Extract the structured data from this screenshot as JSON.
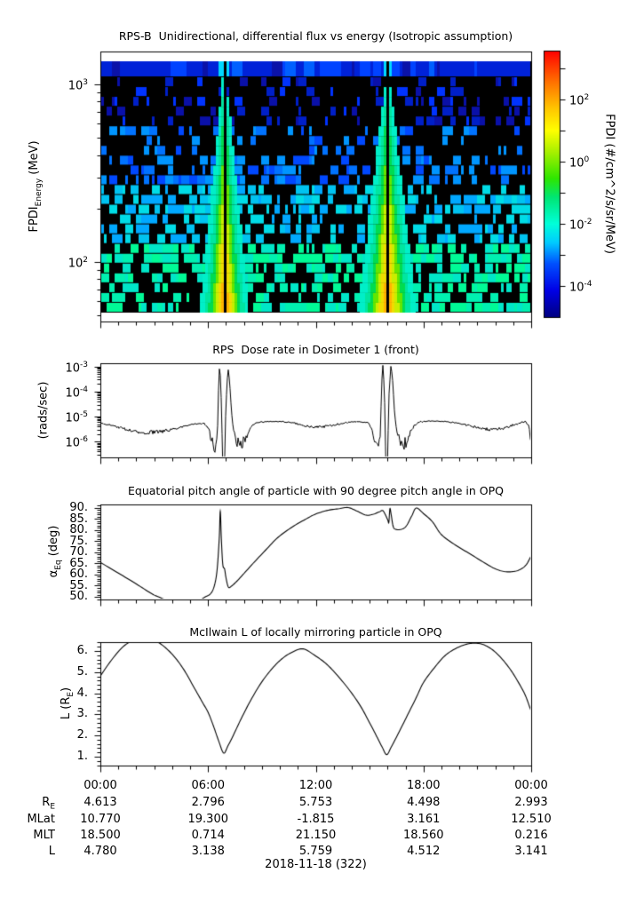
{
  "page": {
    "background": "#ffffff",
    "text_color": "#000000",
    "date_label": "2018-11-18 (322)"
  },
  "chart_data": [
    {
      "type": "heatmap",
      "title": "RPS-B  Unidirectional, differential flux vs energy (Isotropic assumption)",
      "ylabel": {
        "main": "FPDI",
        "sub": "Energy",
        "rest": " (MeV)"
      },
      "x_range_hours": [
        0,
        24
      ],
      "y_scale": "log",
      "y_log_range_mev": [
        1.665,
        3.185
      ],
      "y_ticks": [
        {
          "base": "10",
          "exp": "3",
          "log": 3
        },
        {
          "base": "10",
          "exp": "2",
          "log": 2
        }
      ],
      "energy_bins": 25,
      "background_style": "sparse blue-cyan noise cells on black, denser and greener toward low energy, solid blue band at highest-energy bin",
      "perigee_funnels": [
        {
          "hour": 6.87,
          "width_scale": 1.0,
          "note": "V-shaped high-flux funnel, green-yellow-orange, black center line"
        },
        {
          "hour": 15.95,
          "width_scale": 1.18,
          "note": "V-shaped high-flux funnel, green-yellow-orange, black center line"
        }
      ],
      "colorbar": {
        "label": "FPDI (#/cm^2/s/sr/MeV)",
        "scale": "log",
        "log_range": [
          -5,
          3.571
        ],
        "tick_logs": [
          3,
          2,
          1,
          0,
          -1,
          -2,
          -3,
          -4
        ],
        "ticks_labeled": [
          {
            "base": "10",
            "exp": "2",
            "log": 2
          },
          {
            "base": "10",
            "exp": "0",
            "log": 0
          },
          {
            "base": "10",
            "exp": "-2",
            "log": -2
          },
          {
            "base": "10",
            "exp": "-4",
            "log": -4
          }
        ],
        "colormap": "rainbow"
      }
    },
    {
      "type": "line",
      "y_scale": "log",
      "title": "RPS  Dose rate in Dosimeter 1 (front)",
      "ylabel": {
        "main": "(rads/sec)",
        "sub": "",
        "rest": ""
      },
      "ylim_log": [
        -6.63,
        -2.87
      ],
      "y_ticks": [
        {
          "base": "10",
          "exp": "-3",
          "log": -3
        },
        {
          "base": "10",
          "exp": "-4",
          "log": -4
        },
        {
          "base": "10",
          "exp": "-5",
          "log": -5
        },
        {
          "base": "10",
          "exp": "-6",
          "log": -6
        }
      ],
      "line_color": "#000000",
      "points_h_v_noise": [
        [
          0,
          5.6e-06,
          0.03
        ],
        [
          0.5,
          4.6e-06,
          0.04
        ],
        [
          1,
          3.8e-06,
          0.05
        ],
        [
          1.5,
          3e-06,
          0.07
        ],
        [
          2,
          2.6e-06,
          0.08
        ],
        [
          2.6,
          2.3e-06,
          0.09
        ],
        [
          3.2,
          2.4e-06,
          0.09
        ],
        [
          3.8,
          2.9e-06,
          0.06
        ],
        [
          4.4,
          3.6e-06,
          0.04
        ],
        [
          5,
          4.8e-06,
          0.03
        ],
        [
          5.5,
          5.4e-06,
          0.025
        ],
        [
          5.8,
          5.2e-06,
          0.03
        ],
        [
          6.0,
          3.8e-06,
          0.06
        ],
        [
          6.15,
          1.4e-06,
          0.18
        ],
        [
          6.3,
          8e-07,
          0.26
        ],
        [
          6.45,
          6.5e-07,
          0.3
        ],
        [
          6.52,
          1.8e-06,
          0.12
        ],
        [
          6.58,
          0.00011,
          0.02
        ],
        [
          6.64,
          0.00115,
          0.005
        ],
        [
          6.71,
          0.00022,
          0.01
        ],
        [
          6.78,
          2e-06,
          0.02
        ],
        [
          6.87,
          3e-09,
          0
        ],
        [
          6.97,
          8e-06,
          0.01
        ],
        [
          7.06,
          0.00028,
          0.008
        ],
        [
          7.13,
          0.00078,
          0.005
        ],
        [
          7.2,
          0.00024,
          0.01
        ],
        [
          7.3,
          1.8e-05,
          0.02
        ],
        [
          7.42,
          2.4e-06,
          0.08
        ],
        [
          7.55,
          1.3e-06,
          0.2
        ],
        [
          7.72,
          8e-07,
          0.3
        ],
        [
          7.9,
          7.5e-07,
          0.3
        ],
        [
          8.05,
          1.1e-06,
          0.2
        ],
        [
          8.2,
          2e-06,
          0.1
        ],
        [
          8.4,
          3.8e-06,
          0.05
        ],
        [
          8.7,
          5.6e-06,
          0.03
        ],
        [
          9.3,
          6.4e-06,
          0.022
        ],
        [
          10,
          6.4e-06,
          0.022
        ],
        [
          10.7,
          5.7e-06,
          0.03
        ],
        [
          11.3,
          4.5e-06,
          0.04
        ],
        [
          11.9,
          3.7e-06,
          0.05
        ],
        [
          12.5,
          4e-06,
          0.05
        ],
        [
          13.1,
          4.8e-06,
          0.04
        ],
        [
          13.7,
          5.7e-06,
          0.03
        ],
        [
          14.4,
          6.4e-06,
          0.022
        ],
        [
          14.9,
          5.6e-06,
          0.03
        ],
        [
          15.1,
          3.8e-06,
          0.05
        ],
        [
          15.25,
          1.5e-06,
          0.15
        ],
        [
          15.4,
          9e-07,
          0.26
        ],
        [
          15.52,
          7e-07,
          0.3
        ],
        [
          15.6,
          1.6e-06,
          0.12
        ],
        [
          15.66,
          0.00015,
          0.02
        ],
        [
          15.73,
          0.0013,
          0.004
        ],
        [
          15.82,
          0.00012,
          0.01
        ],
        [
          15.95,
          3e-09,
          0
        ],
        [
          16.07,
          6e-05,
          0.01
        ],
        [
          16.19,
          0.00125,
          0.004
        ],
        [
          16.28,
          0.00028,
          0.01
        ],
        [
          16.38,
          1.8e-05,
          0.02
        ],
        [
          16.5,
          2.8e-06,
          0.08
        ],
        [
          16.65,
          1.4e-06,
          0.2
        ],
        [
          16.82,
          8.5e-07,
          0.3
        ],
        [
          17,
          9e-07,
          0.28
        ],
        [
          17.15,
          1.4e-06,
          0.18
        ],
        [
          17.3,
          2.6e-06,
          0.08
        ],
        [
          17.5,
          4.6e-06,
          0.04
        ],
        [
          17.8,
          6.2e-06,
          0.03
        ],
        [
          18.4,
          6.6e-06,
          0.022
        ],
        [
          19.1,
          6.4e-06,
          0.022
        ],
        [
          19.7,
          5.7e-06,
          0.03
        ],
        [
          20.3,
          4.7e-06,
          0.04
        ],
        [
          20.9,
          3.8e-06,
          0.05
        ],
        [
          21.4,
          3.2e-06,
          0.06
        ],
        [
          21.9,
          3e-06,
          0.07
        ],
        [
          22.4,
          3.4e-06,
          0.06
        ],
        [
          22.9,
          4.4e-06,
          0.05
        ],
        [
          23.4,
          5.7e-06,
          0.035
        ],
        [
          23.65,
          6.3e-06,
          0.03
        ],
        [
          23.85,
          4.5e-06,
          0.06
        ],
        [
          23.95,
          1.5e-06,
          0.15
        ],
        [
          24,
          9e-07,
          0.2
        ]
      ]
    },
    {
      "type": "line",
      "title": "Equatorial pitch angle of particle with 90 degree pitch angle in OPQ",
      "ylabel": {
        "main": "α",
        "sub": "Eq",
        "rest": " (deg)"
      },
      "ylim": [
        48.8,
        91.6
      ],
      "y_ticks": [
        50,
        55,
        60,
        65,
        70,
        75,
        80,
        85,
        90
      ],
      "y_tick_suffix": ".",
      "y_minor_step": 1,
      "line_color": "#000000",
      "points_h_deg": [
        [
          0,
          65.5
        ],
        [
          1,
          60.7
        ],
        [
          2,
          55.8
        ],
        [
          2.8,
          51.7
        ],
        [
          3.2,
          50.1
        ],
        [
          3.8,
          48.4
        ],
        [
          4.6,
          47.6
        ],
        [
          5.4,
          48.2
        ],
        [
          5.85,
          50.0
        ],
        [
          6.15,
          51.5
        ],
        [
          6.35,
          55
        ],
        [
          6.5,
          62
        ],
        [
          6.62,
          76
        ],
        [
          6.68,
          88.5
        ],
        [
          6.74,
          76
        ],
        [
          6.82,
          64.5
        ],
        [
          6.92,
          62.5
        ],
        [
          7.0,
          58.5
        ],
        [
          7.13,
          54.4
        ],
        [
          7.3,
          54.8
        ],
        [
          7.6,
          57
        ],
        [
          8,
          60.5
        ],
        [
          8.5,
          65
        ],
        [
          9.2,
          71
        ],
        [
          9.9,
          76.8
        ],
        [
          10.7,
          81.5
        ],
        [
          11.4,
          84.8
        ],
        [
          12,
          87.3
        ],
        [
          12.7,
          89
        ],
        [
          13.3,
          89.7
        ],
        [
          13.8,
          90.2
        ],
        [
          14.3,
          88.6
        ],
        [
          14.8,
          86.8
        ],
        [
          15.2,
          87.2
        ],
        [
          15.55,
          88.3
        ],
        [
          15.75,
          88.7
        ],
        [
          16.0,
          84.8
        ],
        [
          16.07,
          83.5
        ],
        [
          16.13,
          89.7
        ],
        [
          16.2,
          87
        ],
        [
          16.32,
          81.5
        ],
        [
          16.5,
          80.3
        ],
        [
          16.8,
          80.5
        ],
        [
          17.05,
          82
        ],
        [
          17.35,
          86.5
        ],
        [
          17.6,
          90
        ],
        [
          18.0,
          87.5
        ],
        [
          18.5,
          83.8
        ],
        [
          19,
          78
        ],
        [
          19.8,
          73.2
        ],
        [
          20.6,
          69.3
        ],
        [
          21.4,
          65.3
        ],
        [
          22,
          62.6
        ],
        [
          22.5,
          61.4
        ],
        [
          22.9,
          61.3
        ],
        [
          23.3,
          62
        ],
        [
          23.7,
          64.2
        ],
        [
          24,
          68.5
        ]
      ]
    },
    {
      "type": "line",
      "title": "McIlwain L of locally mirroring particle in OPQ",
      "ylabel": {
        "main": "L (R",
        "sub": "E",
        "rest": ")"
      },
      "ylim": [
        0.58,
        6.42
      ],
      "y_ticks": [
        1,
        2,
        3,
        4,
        5,
        6
      ],
      "y_tick_suffix": ".",
      "y_minor_step": 0.2,
      "line_color": "#000000",
      "points_h_l": [
        [
          0,
          4.82
        ],
        [
          0.6,
          5.55
        ],
        [
          1.2,
          6.15
        ],
        [
          1.7,
          6.45
        ],
        [
          2.2,
          6.58
        ],
        [
          2.7,
          6.58
        ],
        [
          3.2,
          6.42
        ],
        [
          3.7,
          6.1
        ],
        [
          4.2,
          5.65
        ],
        [
          4.7,
          5.05
        ],
        [
          5.2,
          4.3
        ],
        [
          5.7,
          3.55
        ],
        [
          6.0,
          3.1
        ],
        [
          6.3,
          2.45
        ],
        [
          6.6,
          1.72
        ],
        [
          6.87,
          1.17
        ],
        [
          7.1,
          1.5
        ],
        [
          7.4,
          2.0
        ],
        [
          7.8,
          2.72
        ],
        [
          8.3,
          3.55
        ],
        [
          8.9,
          4.42
        ],
        [
          9.5,
          5.1
        ],
        [
          10.1,
          5.62
        ],
        [
          10.7,
          5.95
        ],
        [
          11.3,
          6.1
        ],
        [
          12,
          5.76
        ],
        [
          12.6,
          5.38
        ],
        [
          13.2,
          4.85
        ],
        [
          13.9,
          4.12
        ],
        [
          14.5,
          3.38
        ],
        [
          15.0,
          2.6
        ],
        [
          15.4,
          1.95
        ],
        [
          15.7,
          1.45
        ],
        [
          15.95,
          1.1
        ],
        [
          16.2,
          1.45
        ],
        [
          16.6,
          2.1
        ],
        [
          17.1,
          2.95
        ],
        [
          17.6,
          3.8
        ],
        [
          18,
          4.51
        ],
        [
          18.6,
          5.2
        ],
        [
          19.2,
          5.78
        ],
        [
          19.8,
          6.12
        ],
        [
          20.4,
          6.32
        ],
        [
          20.9,
          6.37
        ],
        [
          21.4,
          6.28
        ],
        [
          21.9,
          6.02
        ],
        [
          22.4,
          5.6
        ],
        [
          22.9,
          5.05
        ],
        [
          23.4,
          4.35
        ],
        [
          23.7,
          3.85
        ],
        [
          24,
          3.14
        ]
      ]
    }
  ],
  "xaxis": {
    "tick_hours": [
      0,
      6,
      12,
      18,
      24
    ],
    "tick_labels": [
      "00:00",
      "06:00",
      "12:00",
      "18:00",
      "00:00"
    ],
    "minor_step_hours": 1
  },
  "table": {
    "rows": [
      {
        "label": "R",
        "label_sub": "E",
        "values": [
          "4.613",
          "2.796",
          "5.753",
          "4.498",
          "2.993"
        ]
      },
      {
        "label": "MLat",
        "label_sub": "",
        "values": [
          "10.770",
          "19.300",
          "-1.815",
          "3.161",
          "12.510"
        ]
      },
      {
        "label": "MLT",
        "label_sub": "",
        "values": [
          "18.500",
          "0.714",
          "21.150",
          "18.560",
          "0.216"
        ]
      },
      {
        "label": "L",
        "label_sub": "",
        "values": [
          "4.780",
          "3.138",
          "5.759",
          "4.512",
          "3.141"
        ]
      }
    ]
  }
}
